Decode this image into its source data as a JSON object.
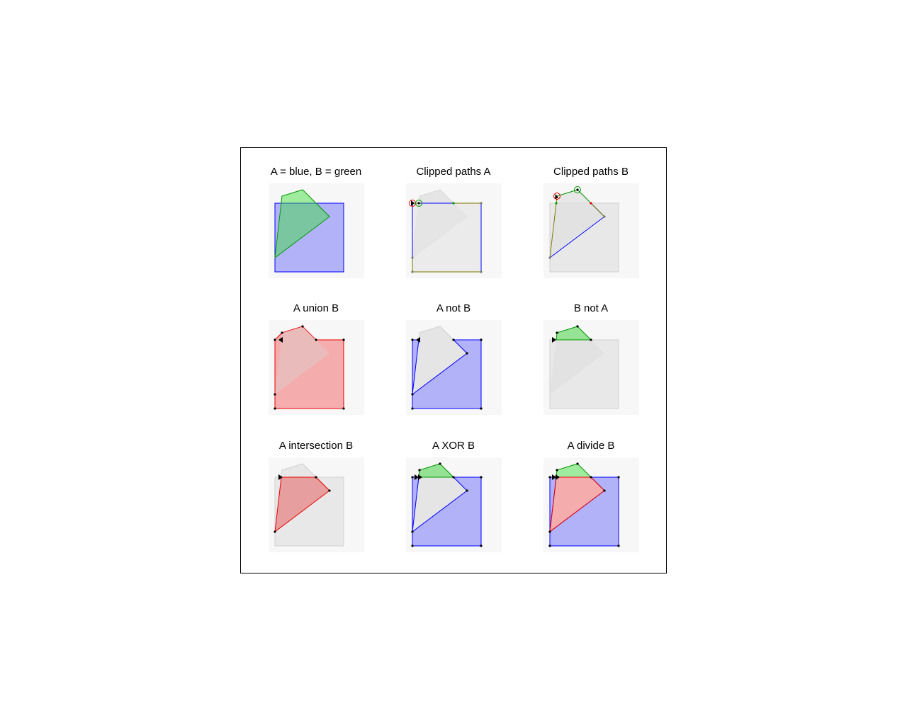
{
  "colors": {
    "blue": "#0000ff",
    "green": "#009900",
    "red": "#ee0000",
    "gray_fill": "#e6e6e6",
    "panel_bg": "#f7f7f7"
  },
  "panels": [
    {
      "title": "A = blue, B = green"
    },
    {
      "title": "Clipped paths A"
    },
    {
      "title": "Clipped paths B"
    },
    {
      "title": "A union B"
    },
    {
      "title": "A not B"
    },
    {
      "title": "B not A"
    },
    {
      "title": "A intersection B"
    },
    {
      "title": "A XOR B"
    },
    {
      "title": "A divide B"
    }
  ]
}
